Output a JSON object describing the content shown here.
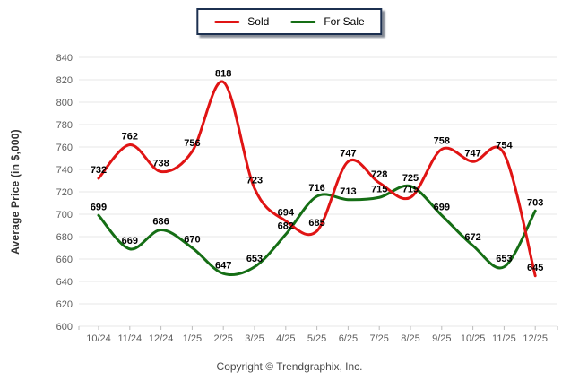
{
  "chart_data": {
    "type": "line",
    "title": "",
    "xlabel": "",
    "ylabel": "Average Price (in $,000)",
    "categories": [
      "10/24",
      "11/24",
      "12/24",
      "1/25",
      "2/25",
      "3/25",
      "4/25",
      "5/25",
      "6/25",
      "7/25",
      "8/25",
      "9/25",
      "10/25",
      "11/25",
      "12/25"
    ],
    "series": [
      {
        "name": "Sold",
        "color": "#e01414",
        "values": [
          732,
          762,
          738,
          756,
          818,
          723,
          694,
          685,
          747,
          728,
          715,
          758,
          747,
          754,
          645
        ]
      },
      {
        "name": "For Sale",
        "color": "#156e15",
        "values": [
          699,
          669,
          686,
          670,
          647,
          653,
          682,
          716,
          713,
          715,
          725,
          699,
          672,
          653,
          703
        ]
      }
    ],
    "ylim": [
      600,
      840
    ],
    "ytick_step": 20,
    "yticks": [
      600,
      620,
      640,
      660,
      680,
      700,
      720,
      740,
      760,
      780,
      800,
      820,
      840
    ],
    "grid": "horizontal-only",
    "legend_position": "top-center",
    "data_labels": true
  },
  "legend": {
    "items": [
      "Sold",
      "For Sale"
    ]
  },
  "footer": {
    "copyright": "Copyright © Trendgraphix, Inc."
  },
  "style": {
    "background": "#ffffff",
    "gridline": "#e7e7e7",
    "axis_tick": "#bbbbbb",
    "tick_text": "#5e5e5e",
    "data_label": "#000000",
    "legend_border": "#1c3050",
    "ylabel_text": "#333333",
    "footer_text": "#4a4a4a"
  }
}
